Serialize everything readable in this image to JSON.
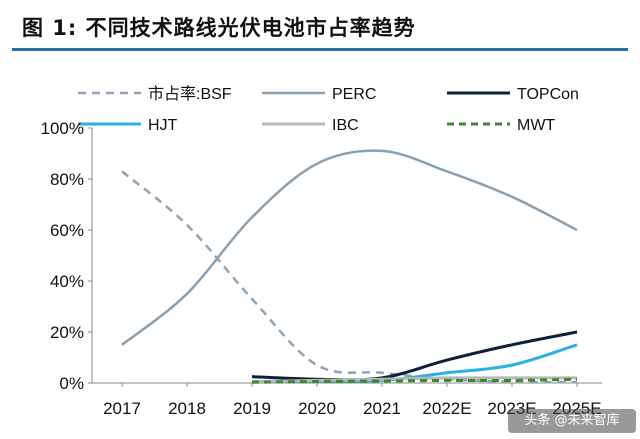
{
  "figure": {
    "title": "图 1:  不同技术路线光伏电池市占率趋势"
  },
  "watermark": "头条 @未来智库",
  "colors": {
    "header_rule": "#2a6fa8",
    "axis": "#888888",
    "tick_text": "#111111"
  },
  "chart_data": {
    "type": "line",
    "categories": [
      "2017",
      "2018",
      "2019",
      "2020",
      "2021",
      "2022E",
      "2023E",
      "2025E"
    ],
    "yticks": [
      "0%",
      "20%",
      "40%",
      "60%",
      "80%",
      "100%"
    ],
    "ylim": [
      0,
      100
    ],
    "grid": false,
    "legend_position": "top",
    "series": [
      {
        "name": "市占率:BSF",
        "values": [
          83,
          62,
          33,
          7,
          4,
          1.5,
          0.5,
          0.3
        ],
        "color": "#8fa3b8",
        "style": "dashed",
        "width": 2.5,
        "dash": "8,6"
      },
      {
        "name": "PERC",
        "values": [
          15,
          35,
          65,
          86,
          91,
          83,
          73,
          60
        ],
        "color": "#8aa0b0",
        "style": "solid",
        "width": 2.5,
        "dash": ""
      },
      {
        "name": "TOPCon",
        "values": [
          null,
          null,
          2.5,
          1.5,
          2,
          9,
          15,
          20
        ],
        "color": "#0d1f3c",
        "style": "solid",
        "width": 3,
        "dash": ""
      },
      {
        "name": "HJT",
        "values": [
          null,
          null,
          0.5,
          0.8,
          1,
          4,
          7,
          15
        ],
        "color": "#2ab0e4",
        "style": "solid",
        "width": 3,
        "dash": ""
      },
      {
        "name": "IBC",
        "values": [
          null,
          null,
          0.5,
          1,
          1.5,
          2,
          2,
          2
        ],
        "color": "#b8b8b8",
        "style": "solid",
        "width": 3,
        "dash": ""
      },
      {
        "name": "MWT",
        "values": [
          null,
          null,
          0.3,
          0.6,
          0.8,
          1,
          1,
          1.5
        ],
        "color": "#3a8a2e",
        "style": "dashed",
        "width": 3,
        "dash": "7,5"
      }
    ]
  }
}
